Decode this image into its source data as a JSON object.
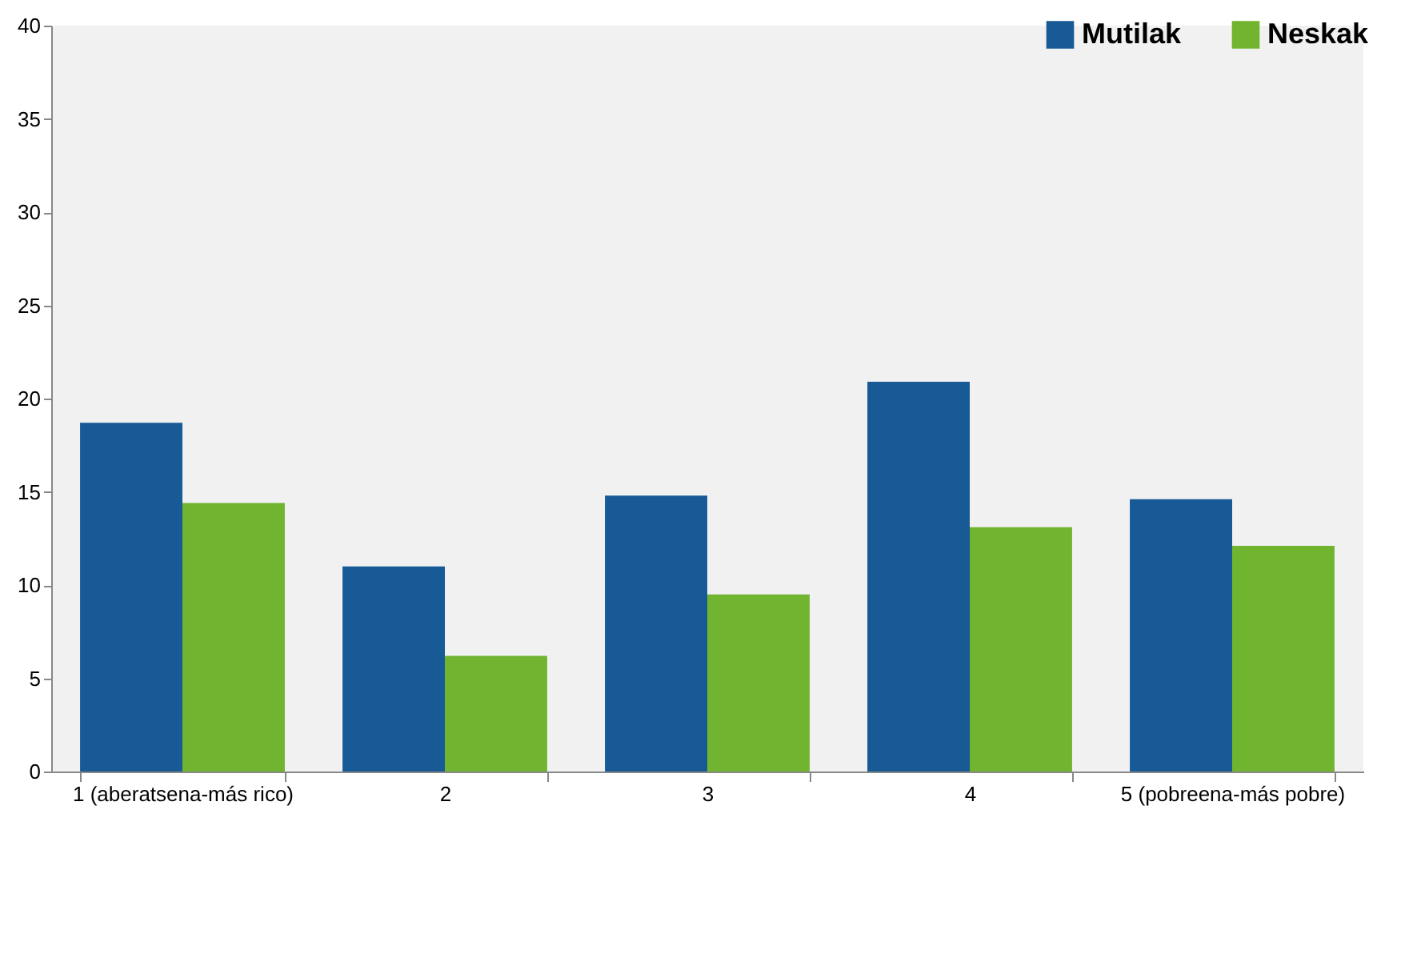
{
  "chart_data": {
    "type": "bar",
    "categories": [
      "1 (aberatsena-más rico)",
      "2",
      "3",
      "4",
      "5 (pobreena-más pobre)"
    ],
    "series": [
      {
        "name": "Mutilak",
        "color": "#175a96",
        "values": [
          18.7,
          11.0,
          14.8,
          20.9,
          14.6
        ]
      },
      {
        "name": "Neskak",
        "color": "#70b42f",
        "values": [
          14.4,
          6.2,
          9.5,
          13.1,
          12.1
        ]
      }
    ],
    "ylim": [
      0,
      40
    ],
    "yticks": [
      0,
      5,
      10,
      15,
      20,
      25,
      30,
      35,
      40
    ],
    "grid": false,
    "legend": "top right"
  }
}
